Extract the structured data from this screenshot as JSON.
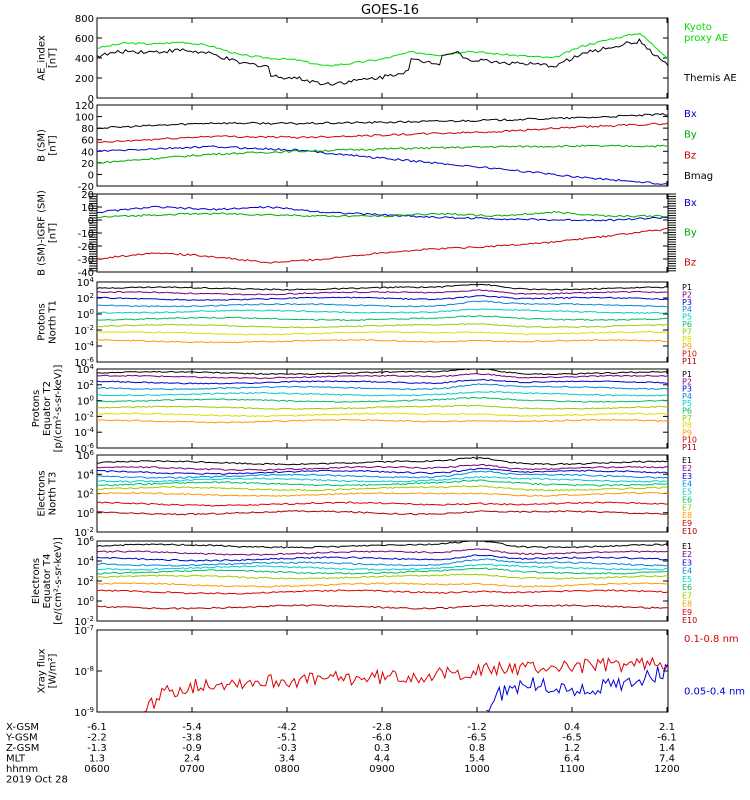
{
  "title": "GOES-16",
  "footer": {
    "rows": [
      {
        "label": "X-GSM",
        "values": [
          "-6.1",
          "-5.4",
          "-4.2",
          "-2.8",
          "-1.2",
          "0.4",
          "2.1"
        ]
      },
      {
        "label": "Y-GSM",
        "values": [
          "-2.2",
          "-3.8",
          "-5.1",
          "-6.0",
          "-6.5",
          "-6.5",
          "-6.1"
        ]
      },
      {
        "label": "Z-GSM",
        "values": [
          "-1.3",
          "-0.9",
          "-0.3",
          "0.3",
          "0.8",
          "1.2",
          "1.4"
        ]
      },
      {
        "label": "MLT",
        "values": [
          "1.3",
          "2.4",
          "3.4",
          "4.4",
          "5.4",
          "6.4",
          "7.4"
        ]
      },
      {
        "label": "hhmm",
        "values": [
          "0600",
          "0700",
          "0800",
          "0900",
          "1000",
          "1100",
          "1200"
        ]
      }
    ],
    "date": "2019 Oct 28"
  },
  "chart_data": [
    {
      "type": "line",
      "ylabel": "AE_index\n[nT]",
      "ylim": [
        0,
        800
      ],
      "yscale": "linear",
      "yticks": [
        "0",
        "200",
        "400",
        "600",
        "800"
      ],
      "x": [
        "0600",
        "0700",
        "0800",
        "0900",
        "1000",
        "1100",
        "1200"
      ],
      "legend": [
        {
          "name": "Kyoto\nproxy AE",
          "color": "#00dd00"
        },
        {
          "name": "Themis AE",
          "color": "#000000"
        }
      ],
      "series": [
        {
          "name": "Kyoto proxy AE",
          "color": "#00dd00",
          "t": [
            0,
            0.05,
            0.1,
            0.15,
            0.2,
            0.25,
            0.3,
            0.35,
            0.4,
            0.45,
            0.5,
            0.55,
            0.6,
            0.65,
            0.7,
            0.75,
            0.8,
            0.85,
            0.9,
            0.95,
            1
          ],
          "v": [
            500,
            550,
            540,
            560,
            520,
            430,
            400,
            380,
            320,
            350,
            390,
            460,
            430,
            470,
            440,
            420,
            400,
            520,
            590,
            650,
            400
          ]
        },
        {
          "name": "Themis AE",
          "color": "#000000"
        }
      ]
    },
    {
      "type": "line",
      "ylabel": "B (SM)\n[nT]",
      "ylim": [
        -20,
        120
      ],
      "yscale": "linear",
      "yticks": [
        "-20",
        "0",
        "20",
        "40",
        "60",
        "80",
        "100",
        "120"
      ],
      "legend": [
        {
          "name": "Bx",
          "color": "#0000cc"
        },
        {
          "name": "By",
          "color": "#00aa00"
        },
        {
          "name": "Bz",
          "color": "#cc0000"
        },
        {
          "name": "Bmag",
          "color": "#000000"
        }
      ],
      "series": [
        {
          "name": "Bx",
          "color": "#0000cc",
          "t": [
            0,
            0.2,
            0.35,
            0.5,
            0.7,
            0.85,
            1
          ],
          "v": [
            40,
            48,
            42,
            28,
            10,
            -5,
            -17
          ]
        },
        {
          "name": "By",
          "color": "#00aa00",
          "t": [
            0,
            0.2,
            0.35,
            0.5,
            0.7,
            0.85,
            1
          ],
          "v": [
            20,
            35,
            40,
            44,
            48,
            49,
            49
          ]
        },
        {
          "name": "Bz",
          "color": "#cc0000",
          "t": [
            0,
            0.2,
            0.35,
            0.5,
            0.7,
            0.85,
            1
          ],
          "v": [
            55,
            66,
            64,
            68,
            74,
            82,
            88
          ]
        },
        {
          "name": "Bmag",
          "color": "#000000",
          "t": [
            0,
            0.2,
            0.35,
            0.5,
            0.7,
            0.85,
            1
          ],
          "v": [
            80,
            89,
            88,
            90,
            94,
            98,
            104
          ]
        }
      ]
    },
    {
      "type": "line",
      "ylabel": "B (SM)-IGRF (SM)\n[nT]",
      "ylim": [
        -40,
        20
      ],
      "yscale": "linear",
      "yticks": [
        "-40",
        "-30",
        "-20",
        "-10",
        "0",
        "10",
        "20"
      ],
      "legend": [
        {
          "name": "Bx",
          "color": "#0000cc"
        },
        {
          "name": "By",
          "color": "#00aa00"
        },
        {
          "name": "Bz",
          "color": "#cc0000"
        }
      ],
      "series": [
        {
          "name": "Bx",
          "color": "#0000cc",
          "t": [
            0,
            0.1,
            0.2,
            0.3,
            0.4,
            0.5,
            0.6,
            0.7,
            0.8,
            0.9,
            1
          ],
          "v": [
            6,
            10,
            8,
            10,
            6,
            4,
            2,
            1,
            0,
            0,
            2
          ]
        },
        {
          "name": "By",
          "color": "#00aa00",
          "t": [
            0,
            0.1,
            0.2,
            0.3,
            0.4,
            0.5,
            0.6,
            0.7,
            0.8,
            0.9,
            1
          ],
          "v": [
            2,
            4,
            5,
            4,
            3,
            3,
            5,
            3,
            6,
            3,
            3
          ]
        },
        {
          "name": "Bz",
          "color": "#cc0000",
          "t": [
            0,
            0.1,
            0.2,
            0.3,
            0.4,
            0.5,
            0.6,
            0.7,
            0.8,
            0.9,
            1
          ],
          "v": [
            -30,
            -25,
            -28,
            -33,
            -30,
            -25,
            -22,
            -20,
            -17,
            -12,
            -7
          ]
        }
      ]
    },
    {
      "type": "line",
      "ylabel": "Protons\nNorth T1",
      "ylim": [
        -6,
        4
      ],
      "yscale": "log",
      "yticks": [
        "10^-6",
        "10^-4",
        "10^-2",
        "10^0",
        "10^2",
        "10^4"
      ],
      "legend": [
        {
          "name": "P1",
          "color": "#000000"
        },
        {
          "name": "P2",
          "color": "#770077"
        },
        {
          "name": "P3",
          "color": "#0000cc"
        },
        {
          "name": "P4",
          "color": "#0088dd"
        },
        {
          "name": "P5",
          "color": "#00cccc"
        },
        {
          "name": "P6",
          "color": "#00bb66"
        },
        {
          "name": "P7",
          "color": "#99cc00"
        },
        {
          "name": "P8",
          "color": "#dddd00"
        },
        {
          "name": "P9",
          "color": "#ff9900"
        },
        {
          "name": "P10",
          "color": "#dd0000"
        },
        {
          "name": "P11",
          "color": "#aa0000"
        }
      ],
      "series": [
        {
          "name": "P1",
          "color": "#000000",
          "base": 3.2
        },
        {
          "name": "P2",
          "color": "#770077",
          "base": 2.6
        },
        {
          "name": "P3",
          "color": "#0000cc",
          "base": 1.9
        },
        {
          "name": "P4",
          "color": "#0088dd",
          "base": 1.1
        },
        {
          "name": "P5",
          "color": "#00cccc",
          "base": 0.3
        },
        {
          "name": "P6",
          "color": "#00bb66",
          "base": -0.6
        },
        {
          "name": "P7",
          "color": "#99cc00",
          "base": -1.5
        },
        {
          "name": "P8",
          "color": "#dddd00",
          "base": -2.4
        },
        {
          "name": "P9",
          "color": "#ff9900",
          "base": -3.4
        }
      ]
    },
    {
      "type": "line",
      "ylabel": "Protons\nEquator T2\n[p/(cm²-s-sr-keV)]",
      "ylim": [
        -6,
        4
      ],
      "yscale": "log",
      "yticks": [
        "10^-6",
        "10^-4",
        "10^-2",
        "10^0",
        "10^2",
        "10^4"
      ],
      "legend": [
        {
          "name": "P1",
          "color": "#000000"
        },
        {
          "name": "P2",
          "color": "#770077"
        },
        {
          "name": "P3",
          "color": "#0000cc"
        },
        {
          "name": "P4",
          "color": "#0088dd"
        },
        {
          "name": "P5",
          "color": "#00cccc"
        },
        {
          "name": "P6",
          "color": "#00bb66"
        },
        {
          "name": "P7",
          "color": "#99cc00"
        },
        {
          "name": "P8",
          "color": "#dddd00"
        },
        {
          "name": "P9",
          "color": "#ff9900"
        },
        {
          "name": "P10",
          "color": "#dd0000"
        },
        {
          "name": "P11",
          "color": "#aa0000"
        }
      ],
      "series": [
        {
          "name": "P1",
          "color": "#000000",
          "base": 3.5
        },
        {
          "name": "P2",
          "color": "#770077",
          "base": 3.0
        },
        {
          "name": "P3",
          "color": "#0000cc",
          "base": 2.3
        },
        {
          "name": "P4",
          "color": "#0088dd",
          "base": 1.6
        },
        {
          "name": "P5",
          "color": "#00cccc",
          "base": 0.8
        },
        {
          "name": "P6",
          "color": "#00bb66",
          "base": 0.0
        },
        {
          "name": "P7",
          "color": "#99cc00",
          "base": -0.9
        },
        {
          "name": "P8",
          "color": "#dddd00",
          "base": -1.8
        },
        {
          "name": "P9",
          "color": "#ff9900",
          "base": -2.6
        }
      ]
    },
    {
      "type": "line",
      "ylabel": "Electrons\nNorth T3",
      "ylim": [
        -2,
        6
      ],
      "yscale": "log",
      "yticks": [
        "10^-2",
        "10^0",
        "10^2",
        "10^4",
        "10^6"
      ],
      "legend": [
        {
          "name": "E1",
          "color": "#000000"
        },
        {
          "name": "E2",
          "color": "#770077"
        },
        {
          "name": "E3",
          "color": "#0000cc"
        },
        {
          "name": "E4",
          "color": "#0088dd"
        },
        {
          "name": "E5",
          "color": "#00cccc"
        },
        {
          "name": "E6",
          "color": "#00bb66"
        },
        {
          "name": "E7",
          "color": "#99cc00"
        },
        {
          "name": "E8",
          "color": "#ff9900"
        },
        {
          "name": "E9",
          "color": "#dd0000"
        },
        {
          "name": "E10",
          "color": "#aa0000"
        }
      ],
      "series": [
        {
          "name": "E1",
          "color": "#000000",
          "base": 5.2
        },
        {
          "name": "E2",
          "color": "#770077",
          "base": 4.6
        },
        {
          "name": "E3",
          "color": "#0000cc",
          "base": 4.2
        },
        {
          "name": "E4",
          "color": "#0088dd",
          "base": 3.8
        },
        {
          "name": "E5",
          "color": "#00cccc",
          "base": 3.4
        },
        {
          "name": "E6",
          "color": "#00bb66",
          "base": 3.0
        },
        {
          "name": "E7",
          "color": "#99cc00",
          "base": 2.5
        },
        {
          "name": "E8",
          "color": "#ff9900",
          "base": 1.9
        },
        {
          "name": "E9",
          "color": "#dd0000",
          "base": 0.9
        },
        {
          "name": "E10",
          "color": "#aa0000",
          "base": 0.0
        }
      ]
    },
    {
      "type": "line",
      "ylabel": "Electrons\nEquator T4\n[e/(cm²-s-sr-keV)]",
      "ylim": [
        -2,
        6
      ],
      "yscale": "log",
      "yticks": [
        "10^-2",
        "10^0",
        "10^2",
        "10^4",
        "10^6"
      ],
      "legend": [
        {
          "name": "E1",
          "color": "#000000"
        },
        {
          "name": "E2",
          "color": "#770077"
        },
        {
          "name": "E3",
          "color": "#0000cc"
        },
        {
          "name": "E4",
          "color": "#0088dd"
        },
        {
          "name": "E5",
          "color": "#00cccc"
        },
        {
          "name": "E6",
          "color": "#00bb66"
        },
        {
          "name": "E7",
          "color": "#99cc00"
        },
        {
          "name": "E8",
          "color": "#ff9900"
        },
        {
          "name": "E9",
          "color": "#dd0000"
        },
        {
          "name": "E10",
          "color": "#aa0000"
        }
      ],
      "series": [
        {
          "name": "E1",
          "color": "#000000",
          "base": 5.5
        },
        {
          "name": "E2",
          "color": "#770077",
          "base": 4.8
        },
        {
          "name": "E3",
          "color": "#0000cc",
          "base": 4.2
        },
        {
          "name": "E4",
          "color": "#0088dd",
          "base": 3.7
        },
        {
          "name": "E5",
          "color": "#00cccc",
          "base": 3.3
        },
        {
          "name": "E6",
          "color": "#00bb66",
          "base": 2.9
        },
        {
          "name": "E7",
          "color": "#99cc00",
          "base": 2.4
        },
        {
          "name": "E8",
          "color": "#ff9900",
          "base": 1.6
        },
        {
          "name": "E9",
          "color": "#dd0000",
          "base": 0.9
        },
        {
          "name": "E10",
          "color": "#aa0000",
          "base": -0.6
        }
      ]
    },
    {
      "type": "line",
      "ylabel": "Xray flux\n[W/m²]",
      "ylim": [
        -9,
        -7
      ],
      "yscale": "log",
      "yticks": [
        "10^-9",
        "10^-8",
        "10^-7"
      ],
      "legend": [
        {
          "name": "0.1-0.8 nm",
          "color": "#dd0000"
        },
        {
          "name": "0.05-0.4 nm",
          "color": "#0000dd"
        }
      ],
      "series": [
        {
          "name": "0.1-0.8 nm",
          "color": "#dd0000",
          "t": [
            0.08,
            0.12,
            0.2,
            0.3,
            0.4,
            0.5,
            0.6,
            0.7,
            0.8,
            0.9,
            1
          ],
          "v": [
            -9.0,
            -8.5,
            -8.3,
            -8.25,
            -8.2,
            -8.15,
            -8.1,
            -7.95,
            -7.9,
            -7.85,
            -7.8
          ]
        },
        {
          "name": "0.05-0.4 nm",
          "color": "#0000dd",
          "t": [
            0.68,
            0.7,
            0.75,
            0.8,
            0.85,
            0.9,
            0.95,
            1
          ],
          "v": [
            -9.0,
            -8.6,
            -8.3,
            -8.4,
            -8.5,
            -8.35,
            -8.2,
            -8.0
          ]
        }
      ]
    }
  ]
}
